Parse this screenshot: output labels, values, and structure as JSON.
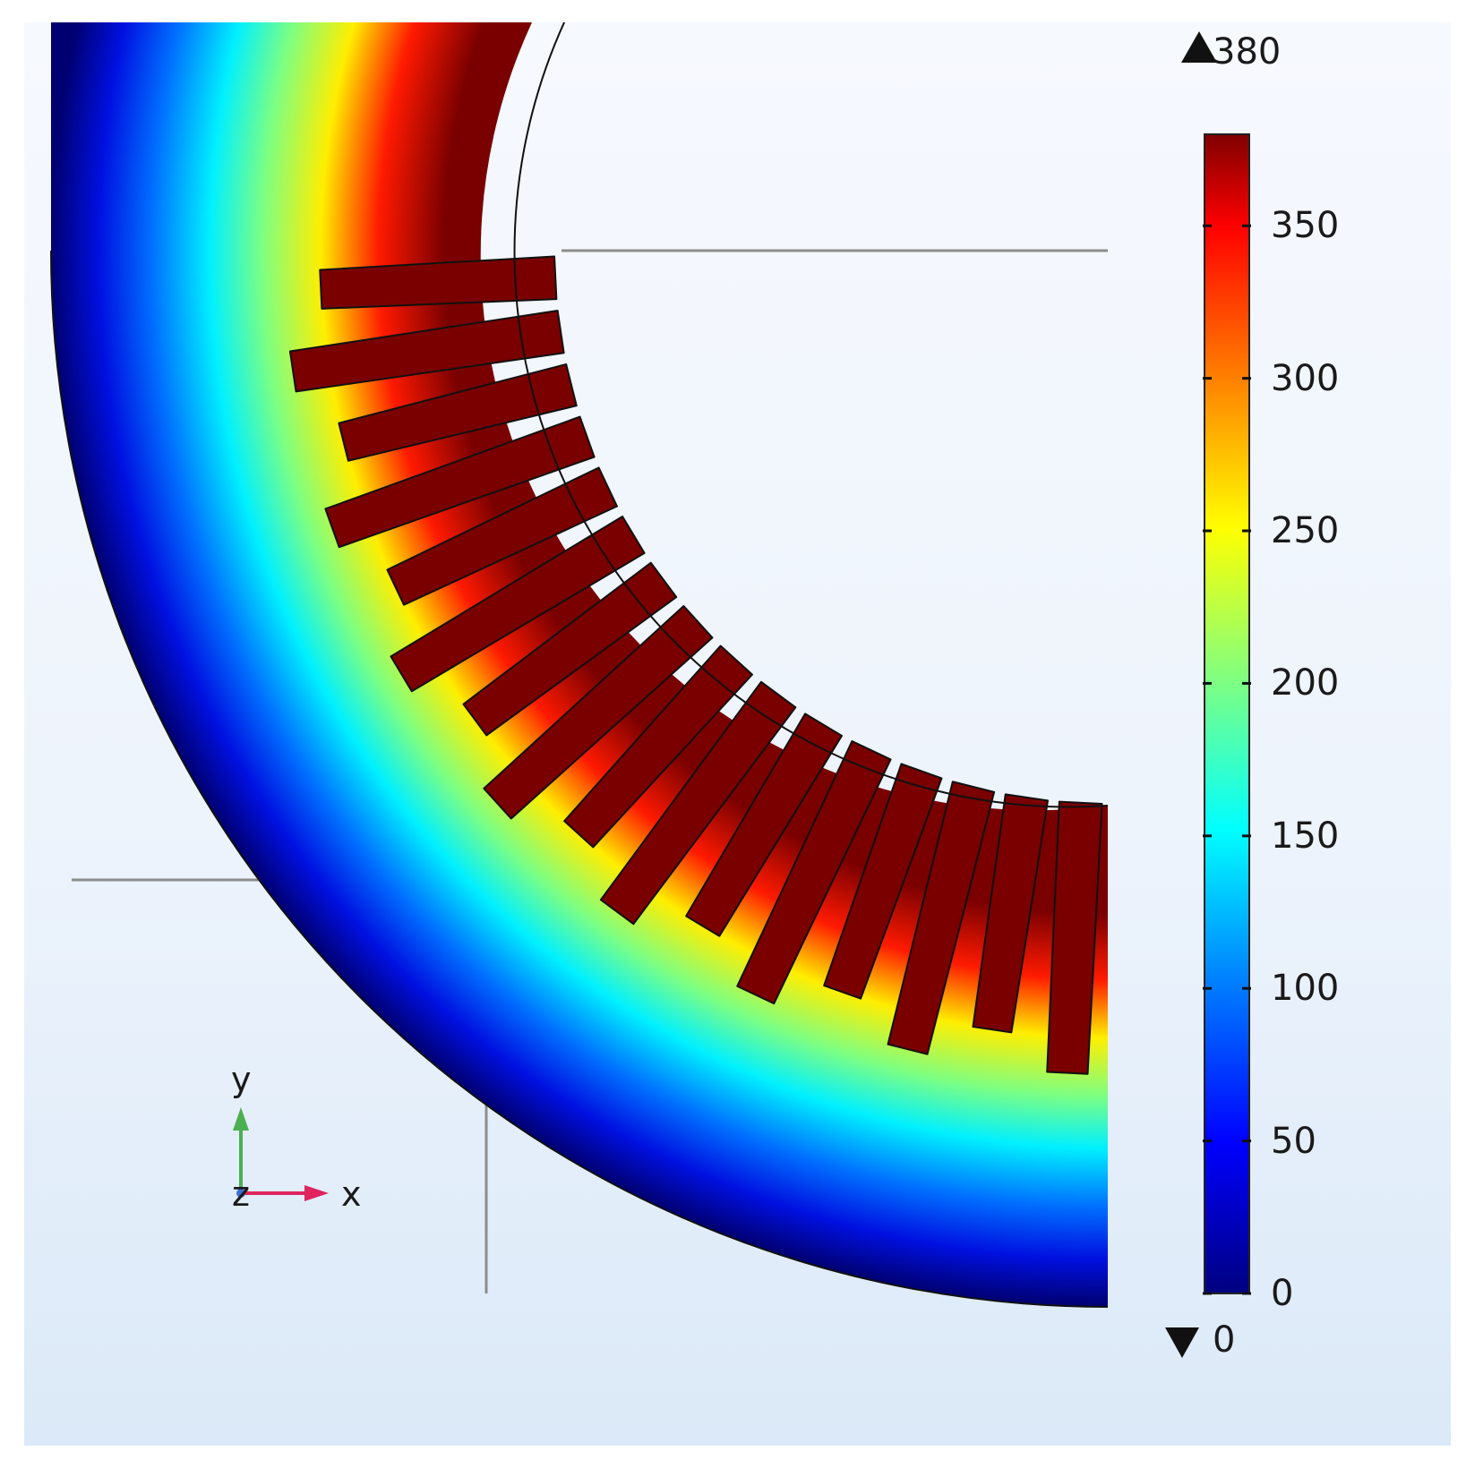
{
  "colorbar": {
    "max_marker": "380",
    "min_marker": "0",
    "range": [
      0,
      380
    ],
    "ticks": [
      "350",
      "300",
      "250",
      "200",
      "150",
      "100",
      "50",
      "0"
    ],
    "tick_values": [
      350,
      300,
      250,
      200,
      150,
      100,
      50,
      0
    ],
    "colormap": [
      "#000080",
      "#0000ff",
      "#0080ff",
      "#00ffff",
      "#80ff80",
      "#ffff00",
      "#ff8000",
      "#ff0000",
      "#800000"
    ]
  },
  "axes_triad": {
    "x_label": "x",
    "y_label": "y",
    "z_label": "z",
    "x_color": "#e0245e",
    "y_color": "#4caf50",
    "z_color": "#3b6fd8"
  },
  "field": {
    "hot_color": "#7a0000",
    "outline_color": "#111111",
    "slots": 16
  }
}
